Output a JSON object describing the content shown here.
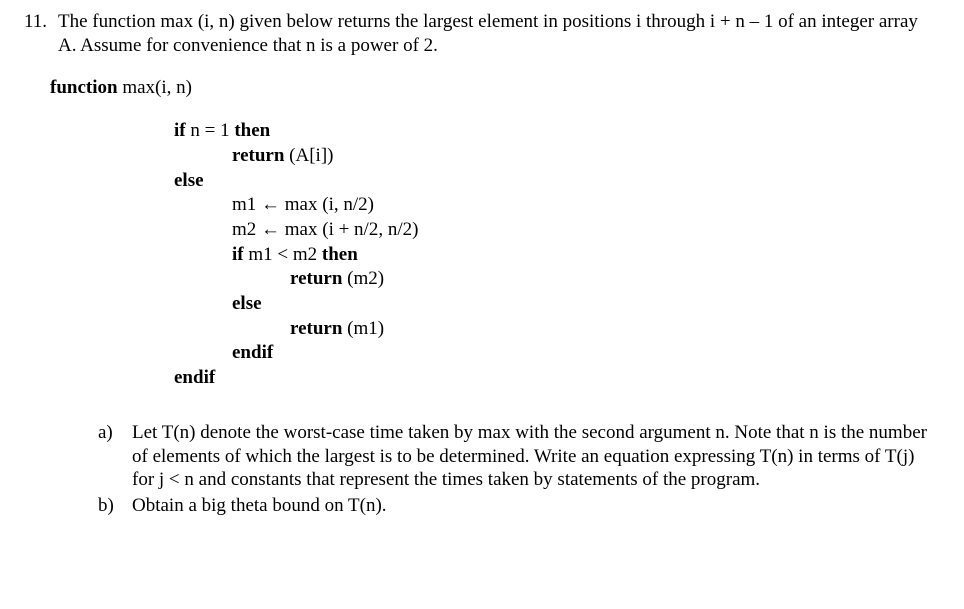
{
  "question": {
    "number": "11.",
    "intro": "The function max (i, n) given below returns the largest element in positions i through i + n – 1 of an integer array A.  Assume for convenience that n is a power of 2."
  },
  "func": {
    "keyword": "function",
    "signature": " max(i, n)"
  },
  "code": {
    "line1_kw1": "if",
    "line1_mid": " n = 1 ",
    "line1_kw2": "then",
    "line2_kw": "return",
    "line2_rest": " (A[i])",
    "else_kw": "else",
    "line3": "m1 ← max (i, n/2)",
    "line4": "m2 ← max (i + n/2, n/2)",
    "line5_kw1": "if",
    "line5_mid": " m1 < m2 ",
    "line5_kw2": "then",
    "line6_kw": "return",
    "line6_rest": " (m2)",
    "else2_kw": "else",
    "line7_kw": "return",
    "line7_rest": " (m1)",
    "endif1": "endif",
    "endif2": "endif"
  },
  "parts": {
    "a_label": "a)",
    "a_text": "Let T(n) denote the worst-case time taken by max with the second argument n.  Note that n is the number of elements of which the largest is to be determined.  Write an equation expressing T(n) in terms of T(j) for j < n and constants that represent the times taken by statements of the program.",
    "b_label": "b)",
    "b_text": "Obtain a big theta bound on T(n)."
  }
}
